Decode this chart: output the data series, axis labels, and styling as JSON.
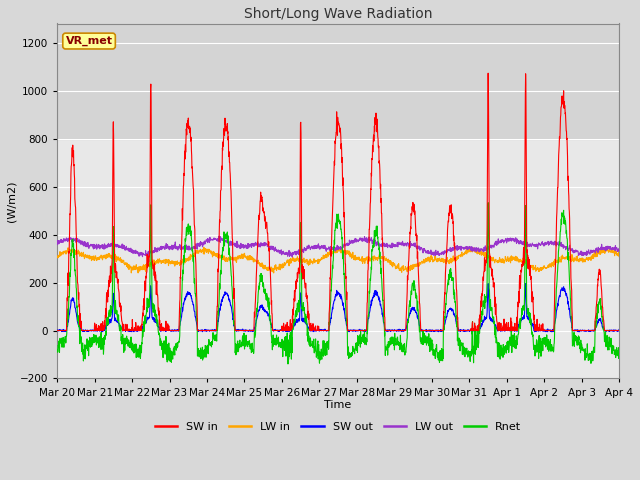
{
  "title": "Short/Long Wave Radiation",
  "xlabel": "Time",
  "ylabel": "(W/m2)",
  "ylim": [
    -200,
    1280
  ],
  "yticks": [
    -200,
    0,
    200,
    400,
    600,
    800,
    1000,
    1200
  ],
  "fig_bg_color": "#d8d8d8",
  "plot_bg_color": "#e8e8e8",
  "shaded_top_color": "#d0d0d0",
  "shaded_region": [
    800,
    1280
  ],
  "colors": {
    "SW_in": "#ff0000",
    "LW_in": "#ffa500",
    "SW_out": "#0000ff",
    "LW_out": "#9933cc",
    "Rnet": "#00cc00"
  },
  "legend_labels": [
    "SW in",
    "LW in",
    "SW out",
    "LW out",
    "Rnet"
  ],
  "site_label": "VR_met",
  "n_days": 15,
  "date_labels": [
    "Mar 20",
    "Mar 21",
    "Mar 22",
    "Mar 23",
    "Mar 24",
    "Mar 25",
    "Mar 26",
    "Mar 27",
    "Mar 28",
    "Mar 29",
    "Mar 30",
    "Mar 31",
    "Apr 1",
    "Apr 2",
    "Apr 3",
    "Apr 4"
  ]
}
